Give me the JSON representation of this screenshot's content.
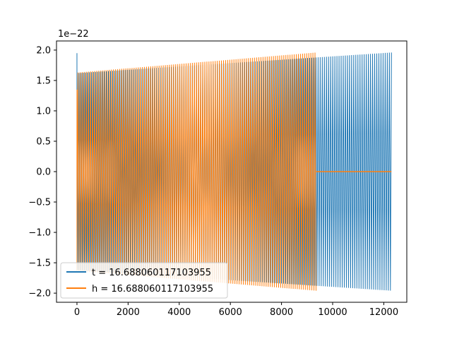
{
  "chart_data": {
    "type": "line",
    "title": "",
    "xlabel": "",
    "ylabel": "",
    "xlim": [
      -800,
      12900
    ],
    "ylim": [
      -2.15,
      2.15
    ],
    "y_offset_label": "1e−22",
    "x_ticks": [
      0,
      2000,
      4000,
      6000,
      8000,
      10000,
      12000
    ],
    "x_tick_labels": [
      "0",
      "2000",
      "4000",
      "6000",
      "8000",
      "10000",
      "12000"
    ],
    "y_ticks": [
      -2.0,
      -1.5,
      -1.0,
      -0.5,
      0.0,
      0.5,
      1.0,
      1.5,
      2.0
    ],
    "y_tick_labels": [
      "−2.0",
      "−1.5",
      "−1.0",
      "−0.5",
      "0.0",
      "0.5",
      "1.0",
      "1.5",
      "2.0"
    ],
    "grid": false,
    "legend_position": "lower-left",
    "series": [
      {
        "name": "t = 16.688060117103955",
        "color": "#1f77b4",
        "x_range": [
          0,
          12300
        ],
        "envelope_start": 1.62,
        "envelope_end": 1.96,
        "initial_spike": 1.95,
        "cycles": 150
      },
      {
        "name": "h = 16.688060117103955",
        "color": "#ff7f0e",
        "x_range": [
          0,
          9350
        ],
        "zero_tail_x_range": [
          9350,
          12300
        ],
        "envelope_start": 1.63,
        "envelope_end": 1.96,
        "cycles": 115
      }
    ]
  }
}
